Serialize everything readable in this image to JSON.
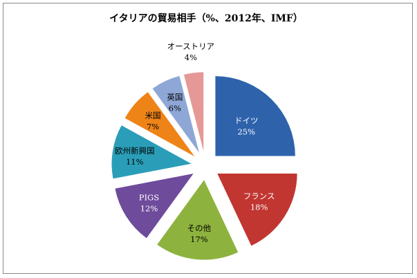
{
  "chart_data": {
    "type": "pie",
    "title": "イタリアの貿易相手（%、2012年、IMF）",
    "slices": [
      {
        "label": "ドイツ",
        "value": 25,
        "pct_label": "25%",
        "color": "#2E63AC",
        "label_color": "#ffffff"
      },
      {
        "label": "フランス",
        "value": 18,
        "pct_label": "18%",
        "color": "#C13631",
        "label_color": "#ffffff"
      },
      {
        "label": "その他",
        "value": 17,
        "pct_label": "17%",
        "color": "#8DB33E",
        "label_color": "#000000"
      },
      {
        "label": "PIGS",
        "value": 12,
        "pct_label": "12%",
        "color": "#6E4B9B",
        "label_color": "#ffffff"
      },
      {
        "label": "欧州新興国",
        "value": 11,
        "pct_label": "11%",
        "color": "#2A9EB8",
        "label_color": "#000000"
      },
      {
        "label": "米国",
        "value": 7,
        "pct_label": "7%",
        "color": "#EE8418",
        "label_color": "#000000"
      },
      {
        "label": "英国",
        "value": 6,
        "pct_label": "6%",
        "color": "#8EA7D6",
        "label_color": "#000000"
      },
      {
        "label": "オーストリア",
        "value": 4,
        "pct_label": "4%",
        "color": "#E59896",
        "label_color": "#000000"
      }
    ],
    "legend": "none"
  }
}
